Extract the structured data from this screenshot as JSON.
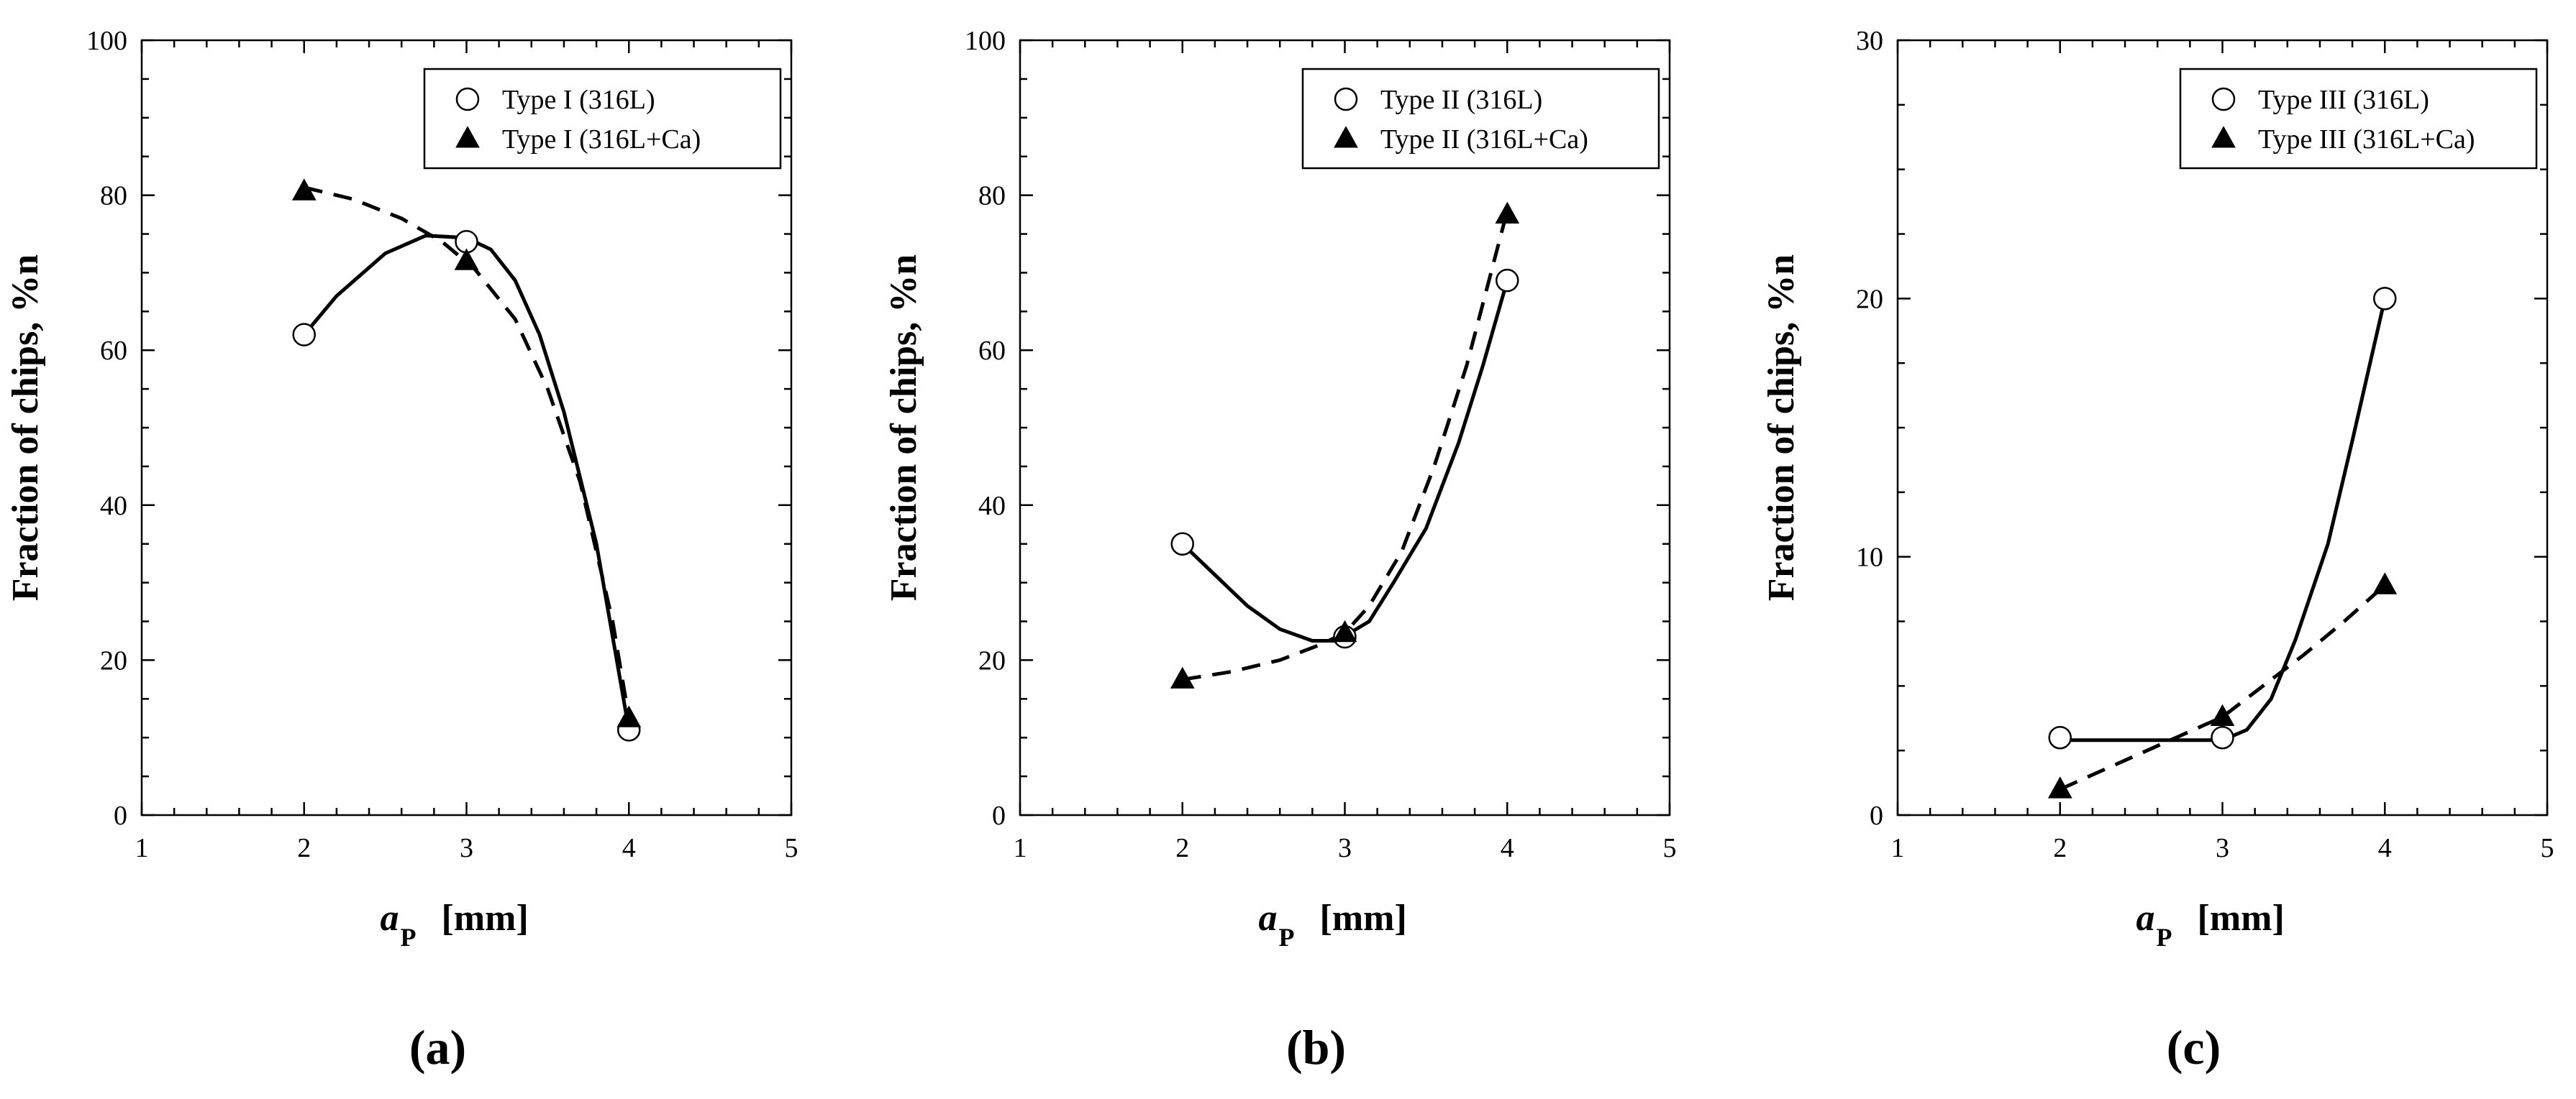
{
  "chart_data": [
    {
      "type": "line",
      "panel_label": "(a)",
      "xlabel": "a",
      "xlabel_sub": "P",
      "xlabel_unit": "[mm]",
      "ylabel": "Fraction of chips,  %n",
      "xlim": [
        1,
        5
      ],
      "ylim": [
        0,
        100
      ],
      "xticks": [
        1,
        2,
        3,
        4,
        5
      ],
      "yticks": [
        0,
        20,
        40,
        60,
        80,
        100
      ],
      "legend_position": "top-right",
      "series": [
        {
          "name": "Type I (316L)",
          "marker": "circle",
          "line": "solid",
          "x": [
            2,
            3,
            4
          ],
          "y": [
            62,
            74,
            11
          ],
          "curve": [
            [
              2,
              62
            ],
            [
              2.2,
              67
            ],
            [
              2.5,
              72.5
            ],
            [
              2.75,
              74.8
            ],
            [
              3,
              74.5
            ],
            [
              3.15,
              73
            ],
            [
              3.3,
              69
            ],
            [
              3.45,
              62
            ],
            [
              3.6,
              52
            ],
            [
              3.8,
              35
            ],
            [
              4,
              11
            ]
          ]
        },
        {
          "name": "Type I (316L+Ca)",
          "marker": "triangle",
          "line": "dashed",
          "x": [
            2,
            3,
            4
          ],
          "y": [
            80.5,
            71.5,
            12.5
          ],
          "curve": [
            [
              2,
              81
            ],
            [
              2.3,
              79.5
            ],
            [
              2.6,
              77
            ],
            [
              2.85,
              74
            ],
            [
              3.05,
              70.5
            ],
            [
              3.3,
              64
            ],
            [
              3.5,
              55
            ],
            [
              3.7,
              43
            ],
            [
              3.9,
              25
            ],
            [
              4,
              12.5
            ]
          ]
        }
      ]
    },
    {
      "type": "line",
      "panel_label": "(b)",
      "xlabel": "a",
      "xlabel_sub": "P",
      "xlabel_unit": "[mm]",
      "ylabel": "Fraction of chips,  %n",
      "xlim": [
        1,
        5
      ],
      "ylim": [
        0,
        100
      ],
      "xticks": [
        1,
        2,
        3,
        4,
        5
      ],
      "yticks": [
        0,
        20,
        40,
        60,
        80,
        100
      ],
      "legend_position": "top-right",
      "series": [
        {
          "name": "Type II (316L)",
          "marker": "circle",
          "line": "solid",
          "x": [
            2,
            3,
            4
          ],
          "y": [
            35,
            23,
            69
          ],
          "curve": [
            [
              2,
              35
            ],
            [
              2.2,
              31
            ],
            [
              2.4,
              27
            ],
            [
              2.6,
              24
            ],
            [
              2.8,
              22.5
            ],
            [
              2.95,
              22.5
            ],
            [
              3.15,
              25
            ],
            [
              3.3,
              30
            ],
            [
              3.5,
              37
            ],
            [
              3.7,
              48
            ],
            [
              3.85,
              58
            ],
            [
              4,
              69
            ]
          ]
        },
        {
          "name": "Type II (316L+Ca)",
          "marker": "triangle",
          "line": "dashed",
          "x": [
            2,
            3,
            4
          ],
          "y": [
            17.5,
            23.5,
            77.5
          ],
          "curve": [
            [
              2,
              17.5
            ],
            [
              2.3,
              18.5
            ],
            [
              2.6,
              20
            ],
            [
              2.85,
              22
            ],
            [
              3,
              23.5
            ],
            [
              3.15,
              27
            ],
            [
              3.35,
              34
            ],
            [
              3.55,
              45
            ],
            [
              3.75,
              58
            ],
            [
              3.9,
              70
            ],
            [
              4,
              78
            ]
          ]
        }
      ]
    },
    {
      "type": "line",
      "panel_label": "(c)",
      "xlabel": "a",
      "xlabel_sub": "P",
      "xlabel_unit": "[mm]",
      "ylabel": "Fraction of chips,  %n",
      "xlim": [
        1,
        5
      ],
      "ylim": [
        0,
        30
      ],
      "xticks": [
        1,
        2,
        3,
        4,
        5
      ],
      "yticks": [
        0,
        10,
        20,
        30
      ],
      "legend_position": "top-right",
      "series": [
        {
          "name": "Type III (316L)",
          "marker": "circle",
          "line": "solid",
          "x": [
            2,
            3,
            4
          ],
          "y": [
            3,
            3,
            20
          ],
          "curve": [
            [
              2,
              2.9
            ],
            [
              2.5,
              2.9
            ],
            [
              3,
              2.9
            ],
            [
              3.15,
              3.3
            ],
            [
              3.3,
              4.5
            ],
            [
              3.45,
              6.8
            ],
            [
              3.65,
              10.5
            ],
            [
              3.8,
              14.5
            ],
            [
              3.92,
              17.8
            ],
            [
              4,
              20
            ]
          ]
        },
        {
          "name": "Type III (316L+Ca)",
          "marker": "triangle",
          "line": "dashed",
          "x": [
            2,
            3,
            4
          ],
          "y": [
            1,
            3.8,
            8.9
          ],
          "curve": [
            [
              2,
              1
            ],
            [
              2.25,
              1.7
            ],
            [
              2.5,
              2.4
            ],
            [
              2.75,
              3.1
            ],
            [
              3,
              3.8
            ],
            [
              3.25,
              5
            ],
            [
              3.5,
              6.2
            ],
            [
              3.75,
              7.5
            ],
            [
              4,
              8.9
            ]
          ]
        }
      ]
    }
  ]
}
